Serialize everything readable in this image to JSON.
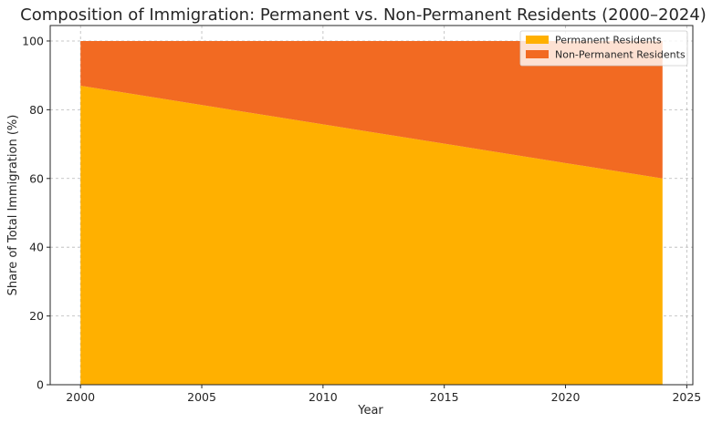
{
  "chart_data": {
    "type": "area",
    "stacked": true,
    "title": "Composition of Immigration: Permanent vs. Non-Permanent Residents (2000–2024)",
    "xlabel": "Year",
    "ylabel": "Share of Total Immigration (%)",
    "xlim": [
      1998.75,
      2025.25
    ],
    "ylim": [
      0,
      104.5
    ],
    "x_ticks": [
      2000,
      2005,
      2010,
      2015,
      2020,
      2025
    ],
    "y_ticks": [
      0,
      20,
      40,
      60,
      80,
      100
    ],
    "grid": true,
    "legend_position": "top-right",
    "x": [
      2000,
      2024
    ],
    "series": [
      {
        "name": "Permanent Residents",
        "values": [
          87,
          60
        ],
        "color": "#FFB000"
      },
      {
        "name": "Non-Permanent Residents",
        "values": [
          13,
          40
        ],
        "color": "#F26A22"
      }
    ]
  }
}
